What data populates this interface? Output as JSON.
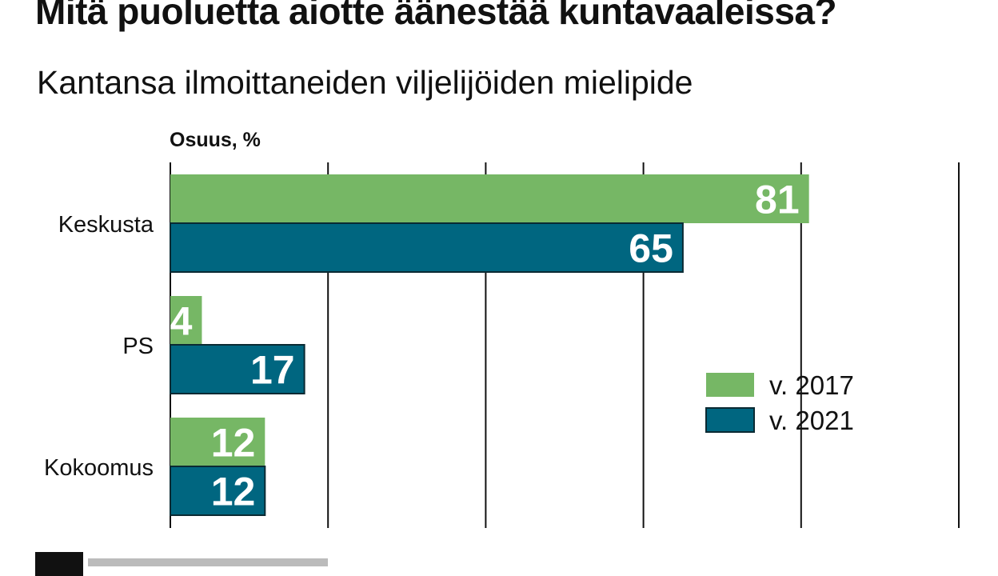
{
  "chart_data": {
    "type": "bar",
    "orientation": "horizontal",
    "title": "Mitä puoluetta aiotte äänestää kuntavaaleissa?",
    "subtitle": "Kantansa ilmoittaneiden viljelijöiden mielipide",
    "unit_label": "Osuus, %",
    "categories": [
      "Keskusta",
      "PS",
      "Kokoomus"
    ],
    "series": [
      {
        "name": "v. 2017",
        "color": "#76b765",
        "values": [
          81,
          4,
          12
        ]
      },
      {
        "name": "v. 2021",
        "color": "#006680",
        "values": [
          65,
          17,
          12
        ]
      }
    ],
    "xlim": [
      0,
      100
    ],
    "grid": true,
    "legend_position": "right"
  }
}
